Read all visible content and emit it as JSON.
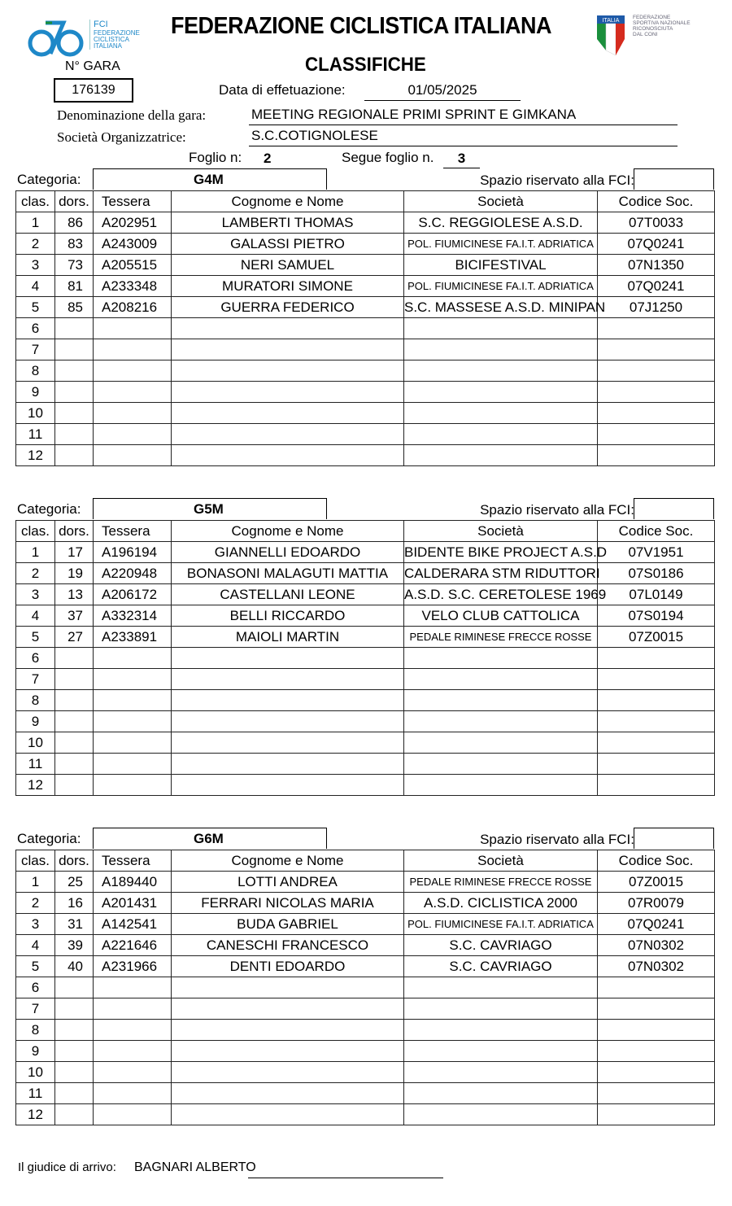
{
  "header": {
    "logo_left_text": [
      "FCI",
      "FEDERAZIONE",
      "CICLISTICA",
      "ITALIANA"
    ],
    "logo_right_text": [
      "ITALIA",
      "FEDERAZIONE",
      "SPORTIVA NAZIONALE",
      "RICONOSCIUTA",
      "DAL CONI"
    ],
    "title": "FEDERAZIONE CICLISTICA ITALIANA",
    "subtitle": "CLASSIFICHE",
    "gara_label": "N° GARA",
    "gara_number": "176139",
    "date_label": "Data di effetuazione:",
    "date_value": "01/05/2025",
    "race_name_label": "Denominazione della gara:",
    "race_name": "MEETING REGIONALE PRIMI SPRINT E GIMKANA",
    "organizer_label": "Società Organizzatrice:",
    "organizer": "S.C.COTIGNOLESE",
    "sheet_label": "Foglio n:",
    "sheet_number": "2",
    "next_sheet_label": "Segue foglio n.",
    "next_sheet_number": "3"
  },
  "labels": {
    "category": "Categoria:",
    "fci_reserved": "Spazio riservato alla FCI:",
    "columns": [
      "clas.",
      "dors.",
      "Tessera",
      "Cognome e Nome",
      "Società",
      "Codice Soc."
    ]
  },
  "categories": [
    {
      "name": "G4M",
      "rows": [
        [
          "1",
          "86",
          "A202951",
          "LAMBERTI THOMAS",
          "S.C. REGGIOLESE A.S.D.",
          "07T0033"
        ],
        [
          "2",
          "83",
          "A243009",
          "GALASSI PIETRO",
          "POL. FIUMICINESE FA.I.T. ADRIATICA",
          "07Q0241"
        ],
        [
          "3",
          "73",
          "A205515",
          "NERI SAMUEL",
          "BICIFESTIVAL",
          "07N1350"
        ],
        [
          "4",
          "81",
          "A233348",
          "MURATORI SIMONE",
          "POL. FIUMICINESE FA.I.T. ADRIATICA",
          "07Q0241"
        ],
        [
          "5",
          "85",
          "A208216",
          "GUERRA FEDERICO",
          "S.C. MASSESE A.S.D. MINIPAN",
          "07J1250"
        ],
        [
          "6",
          "",
          "",
          "",
          "",
          ""
        ],
        [
          "7",
          "",
          "",
          "",
          "",
          ""
        ],
        [
          "8",
          "",
          "",
          "",
          "",
          ""
        ],
        [
          "9",
          "",
          "",
          "",
          "",
          ""
        ],
        [
          "10",
          "",
          "",
          "",
          "",
          ""
        ],
        [
          "11",
          "",
          "",
          "",
          "",
          ""
        ],
        [
          "12",
          "",
          "",
          "",
          "",
          ""
        ]
      ]
    },
    {
      "name": "G5M",
      "rows": [
        [
          "1",
          "17",
          "A196194",
          "GIANNELLI EDOARDO",
          "BIDENTE BIKE PROJECT A.S.D",
          "07V1951"
        ],
        [
          "2",
          "19",
          "A220948",
          "BONASONI MALAGUTI MATTIA",
          "CALDERARA STM RIDUTTORI",
          "07S0186"
        ],
        [
          "3",
          "13",
          "A206172",
          "CASTELLANI LEONE",
          "A.S.D. S.C. CERETOLESE 1969",
          "07L0149"
        ],
        [
          "4",
          "37",
          "A332314",
          "BELLI RICCARDO",
          "VELO CLUB CATTOLICA",
          "07S0194"
        ],
        [
          "5",
          "27",
          "A233891",
          "MAIOLI MARTIN",
          "PEDALE RIMINESE FRECCE ROSSE",
          "07Z0015"
        ],
        [
          "6",
          "",
          "",
          "",
          "",
          ""
        ],
        [
          "7",
          "",
          "",
          "",
          "",
          ""
        ],
        [
          "8",
          "",
          "",
          "",
          "",
          ""
        ],
        [
          "9",
          "",
          "",
          "",
          "",
          ""
        ],
        [
          "10",
          "",
          "",
          "",
          "",
          ""
        ],
        [
          "11",
          "",
          "",
          "",
          "",
          ""
        ],
        [
          "12",
          "",
          "",
          "",
          "",
          ""
        ]
      ]
    },
    {
      "name": "G6M",
      "rows": [
        [
          "1",
          "25",
          "A189440",
          "LOTTI ANDREA",
          "PEDALE RIMINESE FRECCE ROSSE",
          "07Z0015"
        ],
        [
          "2",
          "16",
          "A201431",
          "FERRARI NICOLAS MARIA",
          "A.S.D. CICLISTICA 2000",
          "07R0079"
        ],
        [
          "3",
          "31",
          "A142541",
          "BUDA GABRIEL",
          "POL. FIUMICINESE FA.I.T. ADRIATICA",
          "07Q0241"
        ],
        [
          "4",
          "39",
          "A221646",
          "CANESCHI FRANCESCO",
          "S.C. CAVRIAGO",
          "07N0302"
        ],
        [
          "5",
          "40",
          "A231966",
          "DENTI EDOARDO",
          "S.C. CAVRIAGO",
          "07N0302"
        ],
        [
          "6",
          "",
          "",
          "",
          "",
          ""
        ],
        [
          "7",
          "",
          "",
          "",
          "",
          ""
        ],
        [
          "8",
          "",
          "",
          "",
          "",
          ""
        ],
        [
          "9",
          "",
          "",
          "",
          "",
          ""
        ],
        [
          "10",
          "",
          "",
          "",
          "",
          ""
        ],
        [
          "11",
          "",
          "",
          "",
          "",
          ""
        ],
        [
          "12",
          "",
          "",
          "",
          "",
          ""
        ]
      ]
    }
  ],
  "footer": {
    "judge_label": "Il giudice di arrivo:",
    "judge_name": "BAGNARI ALBERTO"
  },
  "colors": {
    "fci_blue": "#1e88c8",
    "italy_green": "#1a8f3c",
    "italy_red": "#d52b1e"
  }
}
